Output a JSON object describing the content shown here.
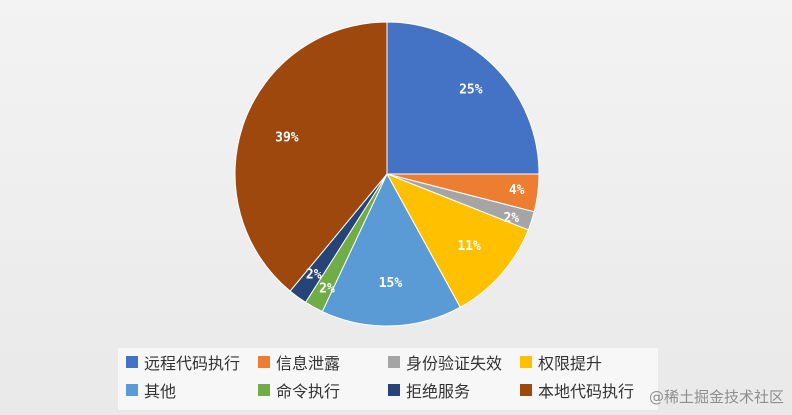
{
  "chart_data": {
    "type": "pie",
    "title": "",
    "start_angle_deg": 0,
    "direction": "clockwise",
    "slices": [
      {
        "label": "远程代码执行",
        "value": 25,
        "display": "25%",
        "color": "#4472c4"
      },
      {
        "label": "信息泄露",
        "value": 4,
        "display": "4%",
        "color": "#ed7d31"
      },
      {
        "label": "身份验证失效",
        "value": 2,
        "display": "2%",
        "color": "#a5a5a5"
      },
      {
        "label": "权限提升",
        "value": 11,
        "display": "11%",
        "color": "#ffc000"
      },
      {
        "label": "其他",
        "value": 15,
        "display": "15%",
        "color": "#5b9bd5"
      },
      {
        "label": "命令执行",
        "value": 2,
        "display": "2%",
        "color": "#70ad47"
      },
      {
        "label": "拒绝服务",
        "value": 2,
        "display": "2%",
        "color": "#264478"
      },
      {
        "label": "本地代码执行",
        "value": 39,
        "display": "39%",
        "color": "#9e480e"
      }
    ],
    "legend": {
      "position": "bottom",
      "items": [
        "远程代码执行",
        "信息泄露",
        "身份验证失效",
        "权限提升",
        "其他",
        "命令执行",
        "拒绝服务",
        "本地代码执行"
      ]
    }
  },
  "watermark": "@稀土掘金技术社区"
}
